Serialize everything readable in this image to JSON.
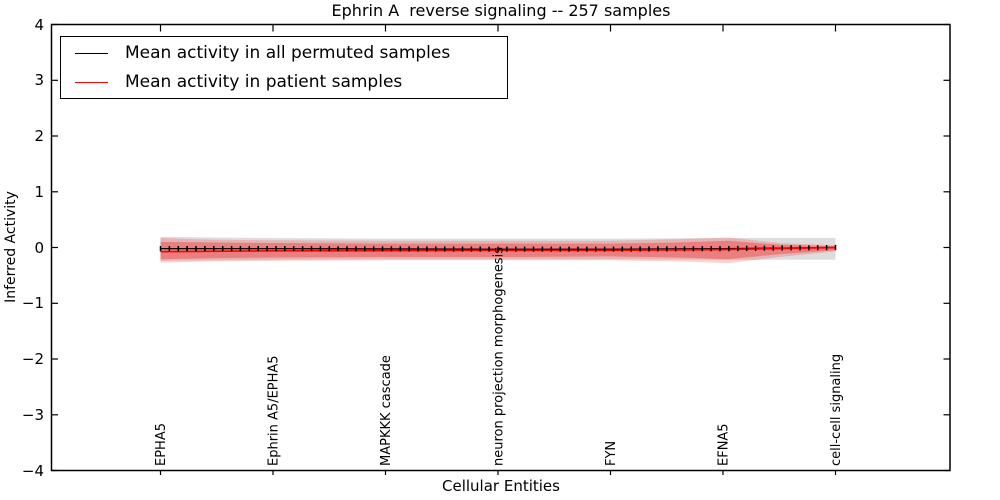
{
  "chart_data": {
    "type": "line",
    "title": "Ephrin A  reverse signaling -- 257 samples",
    "xlabel": "Cellular Entities",
    "ylabel": "Inferred Activity",
    "ylim": [
      -4,
      4
    ],
    "ytick_values": [
      4,
      3,
      2,
      1,
      0,
      -1,
      -2,
      -3,
      -4
    ],
    "ytick_labels": [
      "4",
      "3",
      "2",
      "1",
      "0",
      "−1",
      "−2",
      "−3",
      "−4"
    ],
    "categories": [
      "EPHA5",
      "Ephrin A5/EPHA5",
      "MAPKKK cascade",
      "neuron projection morphogenesis",
      "FYN",
      "EFNA5",
      "cell-cell signaling"
    ],
    "grid": false,
    "legend_position": "upper left",
    "n_marker_points": 77,
    "series": [
      {
        "name": "Mean activity in all permuted samples",
        "color": "#000000",
        "x": [
          0,
          1,
          2,
          3,
          4,
          5,
          6
        ],
        "y": [
          -0.02,
          -0.02,
          -0.025,
          -0.03,
          -0.03,
          -0.02,
          0.0
        ]
      },
      {
        "name": "Mean activity in patient samples",
        "color": "#ff0000",
        "x": [
          0,
          1,
          2,
          3,
          4,
          5,
          6
        ],
        "y": [
          -0.075,
          -0.06,
          -0.055,
          -0.05,
          -0.05,
          -0.035,
          0.0
        ]
      }
    ],
    "bands": [
      {
        "name": "permuted-samples-std-band",
        "color": "rgba(150,150,150,0.32)",
        "x": [
          0,
          0.5,
          1,
          2,
          3,
          4,
          5,
          5.5,
          6
        ],
        "hi": [
          0.19,
          0.18,
          0.17,
          0.16,
          0.16,
          0.16,
          0.17,
          0.17,
          0.17
        ],
        "lo": [
          -0.24,
          -0.23,
          -0.22,
          -0.21,
          -0.21,
          -0.21,
          -0.22,
          -0.22,
          -0.22
        ]
      },
      {
        "name": "patient-samples-std-outer-band",
        "color": "rgba(255,0,0,0.18)",
        "x": [
          0,
          0.5,
          1,
          2,
          3,
          4,
          4.6,
          5.05,
          5.5,
          6
        ],
        "hi": [
          0.17,
          0.14,
          0.13,
          0.12,
          0.12,
          0.12,
          0.15,
          0.18,
          0.08,
          0.04
        ],
        "lo": [
          -0.27,
          -0.25,
          -0.24,
          -0.23,
          -0.23,
          -0.23,
          -0.25,
          -0.28,
          -0.17,
          -0.07
        ]
      },
      {
        "name": "patient-samples-std-inner-band",
        "color": "rgba(255,0,0,0.30)",
        "x": [
          0,
          0.5,
          1,
          2,
          3,
          4,
          4.6,
          5.05,
          5.5,
          6
        ],
        "hi": [
          0.1,
          0.09,
          0.08,
          0.07,
          0.07,
          0.07,
          0.09,
          0.12,
          0.05,
          0.02
        ],
        "lo": [
          -0.21,
          -0.19,
          -0.18,
          -0.17,
          -0.17,
          -0.16,
          -0.18,
          -0.21,
          -0.12,
          -0.05
        ]
      }
    ],
    "legend": {
      "entries": [
        {
          "label": "Mean activity in all permuted samples",
          "color": "#000000"
        },
        {
          "label": "Mean activity in patient samples",
          "color": "#ff0000"
        }
      ]
    }
  }
}
